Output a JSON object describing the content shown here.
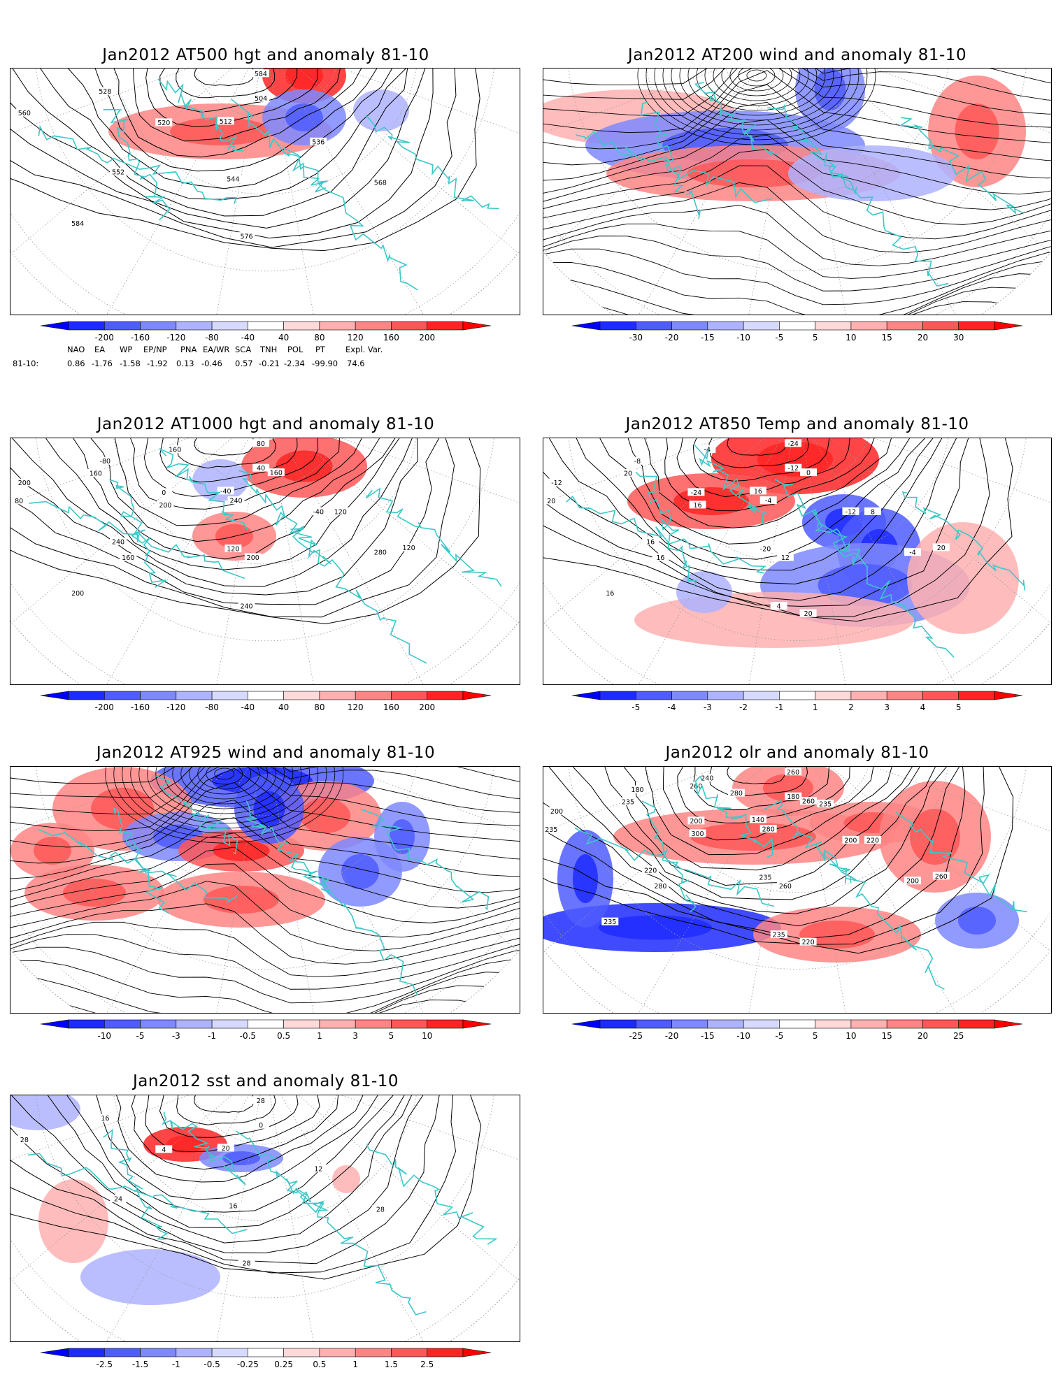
{
  "colors": {
    "coast": "#3cc8c8",
    "contour": "#000000",
    "blues": [
      "#1e2bff",
      "#4f5cff",
      "#7e88ff",
      "#aeb3ff",
      "#d7daff"
    ],
    "reds": [
      "#ffd9d9",
      "#ffb0b0",
      "#ff8585",
      "#ff5757",
      "#ff2424"
    ]
  },
  "panels": [
    {
      "title": "Jan2012 AT500 hgt and anomaly 81-10",
      "scale": [
        "-200",
        "-160",
        "-120",
        "-80",
        "-40",
        "40",
        "80",
        "120",
        "160",
        "200"
      ],
      "contour_labels": [
        "584",
        "504",
        "512",
        "520",
        "528",
        "536",
        "544",
        "552",
        "560",
        "568",
        "576",
        "584"
      ],
      "icon": "hemispheric-map-icon"
    },
    {
      "title": "Jan2012 AT200 wind and anomaly 81-10",
      "scale": [
        "-30",
        "-20",
        "-15",
        "-10",
        "-5",
        "5",
        "10",
        "15",
        "20",
        "30"
      ],
      "contour_labels": [],
      "icon": "streamline-map-icon"
    },
    {
      "title": "Jan2012 AT1000 hgt and anomaly 81-10",
      "scale": [
        "-200",
        "-160",
        "-120",
        "-80",
        "-40",
        "40",
        "80",
        "120",
        "160",
        "200"
      ],
      "contour_labels": [
        "80",
        "40",
        "-40",
        "0",
        "-80",
        "-40",
        "120",
        "240",
        "200",
        "280",
        "240",
        "200",
        "160",
        "160",
        "240",
        "200",
        "160",
        "120",
        "200",
        "160",
        "80",
        "120"
      ],
      "icon": "hemispheric-map-icon"
    },
    {
      "title": "Jan2012 AT850 Temp and anomaly 81-10",
      "scale": [
        "-5",
        "-4",
        "-3",
        "-2",
        "-1",
        "1",
        "2",
        "3",
        "4",
        "5"
      ],
      "contour_labels": [
        "-24",
        "-12",
        "16",
        "-24",
        "-8",
        "-12",
        "-20",
        "16",
        "-12",
        "-4",
        "4",
        "16",
        "-4",
        "0",
        "-4",
        "16",
        "20",
        "8",
        "12",
        "16",
        "20",
        "20",
        "20"
      ],
      "icon": "hemispheric-map-icon"
    },
    {
      "title": "Jan2012 AT925 wind and anomaly 81-10",
      "scale": [
        "-10",
        "-5",
        "-3",
        "-1",
        "-0.5",
        "0.5",
        "1",
        "3",
        "5",
        "10"
      ],
      "contour_labels": [],
      "icon": "streamline-map-icon"
    },
    {
      "title": "Jan2012 olr and anomaly 81-10",
      "scale": [
        "-25",
        "-20",
        "-15",
        "-10",
        "-5",
        "5",
        "10",
        "15",
        "20",
        "25"
      ],
      "contour_labels": [
        "260",
        "180",
        "140",
        "200",
        "180",
        "200",
        "235",
        "220",
        "200",
        "200",
        "235",
        "235",
        "240",
        "260",
        "280",
        "300",
        "235",
        "220",
        "260",
        "280",
        "235",
        "260",
        "220",
        "280",
        "260",
        "235"
      ],
      "icon": "hemispheric-map-icon"
    },
    {
      "title": "Jan2012 sst and anomaly 81-10",
      "scale": [
        "-2.5",
        "-1.5",
        "-1",
        "-0.5",
        "-0.25",
        "0.25",
        "0.5",
        "1",
        "1.5",
        "2.5"
      ],
      "contour_labels": [
        "28",
        "0",
        "20",
        "4",
        "16",
        "12",
        "16",
        "24",
        "28",
        "28",
        "28"
      ],
      "icon": "hemispheric-map-icon"
    }
  ],
  "teleconnections": {
    "headers": [
      "NAO",
      "EA",
      "WP",
      "EP/NP",
      "PNA",
      "EA/WR",
      "SCA",
      "TNH",
      "POL",
      "PT",
      "Expl. Var."
    ],
    "row_label": "81-10:",
    "values": [
      "0.86",
      "-1.76",
      "-1.58",
      "-1.92",
      "0.13",
      "-0.46",
      "0.57",
      "-0.21",
      "-2.34",
      "-99.90",
      "74.6"
    ]
  }
}
